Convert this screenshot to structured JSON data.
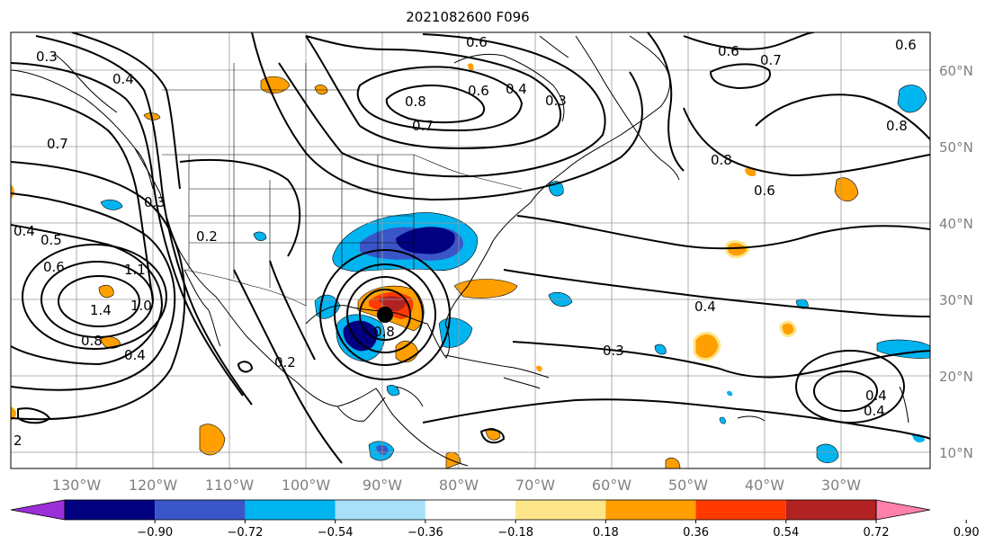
{
  "title": "2021082600 F096",
  "lat_labels": [
    "60°N",
    "50°N",
    "40°N",
    "30°N",
    "20°N",
    "10°N"
  ],
  "lon_labels": [
    "130°W",
    "120°W",
    "110°W",
    "100°W",
    "90°W",
    "80°W",
    "70°W",
    "60°W",
    "50°W",
    "40°W",
    "30°W"
  ],
  "colorbar": {
    "ticks": [
      "−0.90",
      "−0.72",
      "−0.54",
      "−0.36",
      "−0.18",
      "0.18",
      "0.36",
      "0.54",
      "0.72",
      "0.90"
    ],
    "colors": [
      "#9b30d9",
      "#000080",
      "#3a55c8",
      "#00b4f0",
      "#a8e0fa",
      "#ffffff",
      "#fde68a",
      "#ff9f00",
      "#ff3a00",
      "#b22222",
      "#ff80a8"
    ]
  },
  "contour_labels": [
    "0.6",
    "0.6",
    "0.6",
    "0.3",
    "0.4",
    "0.8",
    "0.7",
    "0.7",
    "0.6",
    "0.4",
    "0.3",
    "0.8",
    "0.8",
    "0.6",
    "0.3",
    "0.4",
    "0.5",
    "0.6",
    "0.7",
    "0.2",
    "1.4",
    "0.8",
    "0.4",
    "1.0",
    "1.1",
    "0.8",
    "0.2",
    "0.4",
    "0.3",
    "0.4",
    "0.4",
    "2"
  ],
  "center_marker": "storm-center"
}
